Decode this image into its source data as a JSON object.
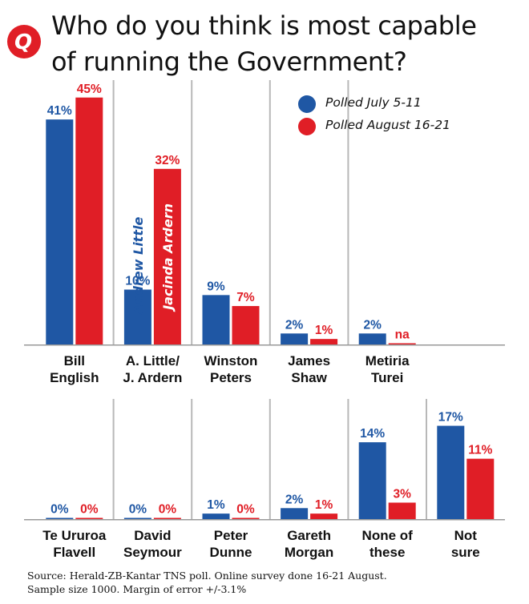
{
  "title": {
    "line1": "Who do you think is most capable",
    "line2": "of running the Government?"
  },
  "logo": {
    "letter": "Q",
    "color": "#e01e26"
  },
  "legend": [
    {
      "label": "Polled July 5-11",
      "color": "#1f57a4"
    },
    {
      "label": "Polled August 16-21",
      "color": "#e01e26"
    }
  ],
  "source": {
    "line1": "Source: Herald-ZB-Kantar TNS poll.  Online survey done 16-21 August.",
    "line2": "Sample size 1000. Margin of error  +/-3.1%"
  },
  "chart_data": {
    "type": "bar",
    "unit": "%",
    "series_colors": [
      "#1f57a4",
      "#e01e26"
    ],
    "series": [
      {
        "name": "Polled July 5-11"
      },
      {
        "name": "Polled August 16-21"
      }
    ],
    "rows": [
      {
        "categories": [
          {
            "label": [
              "Bill",
              "English"
            ],
            "values": [
              41,
              45
            ],
            "display": [
              "41%",
              "45%"
            ]
          },
          {
            "label": [
              "A. Little/",
              "J. Ardern"
            ],
            "values": [
              10,
              32
            ],
            "display": [
              "10%",
              "32%"
            ],
            "bar_names": [
              "Andrew Little",
              "Jacinda Ardern"
            ]
          },
          {
            "label": [
              "Winston",
              "Peters"
            ],
            "values": [
              9,
              7
            ],
            "display": [
              "9%",
              "7%"
            ]
          },
          {
            "label": [
              "James",
              "Shaw"
            ],
            "values": [
              2,
              1
            ],
            "display": [
              "2%",
              "1%"
            ]
          },
          {
            "label": [
              "Metiria",
              "Turei"
            ],
            "values": [
              2,
              null
            ],
            "display": [
              "2%",
              "na"
            ]
          }
        ]
      },
      {
        "categories": [
          {
            "label": [
              "Te Ururoa",
              "Flavell"
            ],
            "values": [
              0,
              0
            ],
            "display": [
              "0%",
              "0%"
            ]
          },
          {
            "label": [
              "David",
              "Seymour"
            ],
            "values": [
              0,
              0
            ],
            "display": [
              "0%",
              "0%"
            ]
          },
          {
            "label": [
              "Peter",
              "Dunne"
            ],
            "values": [
              1,
              0
            ],
            "display": [
              "1%",
              "0%"
            ]
          },
          {
            "label": [
              "Gareth",
              "Morgan"
            ],
            "values": [
              2,
              1
            ],
            "display": [
              "2%",
              "1%"
            ]
          },
          {
            "label": [
              "None of",
              "these"
            ],
            "values": [
              14,
              3
            ],
            "display": [
              "14%",
              "3%"
            ]
          },
          {
            "label": [
              "Not",
              "sure"
            ],
            "values": [
              17,
              11
            ],
            "display": [
              "17%",
              "11%"
            ]
          }
        ]
      }
    ]
  }
}
